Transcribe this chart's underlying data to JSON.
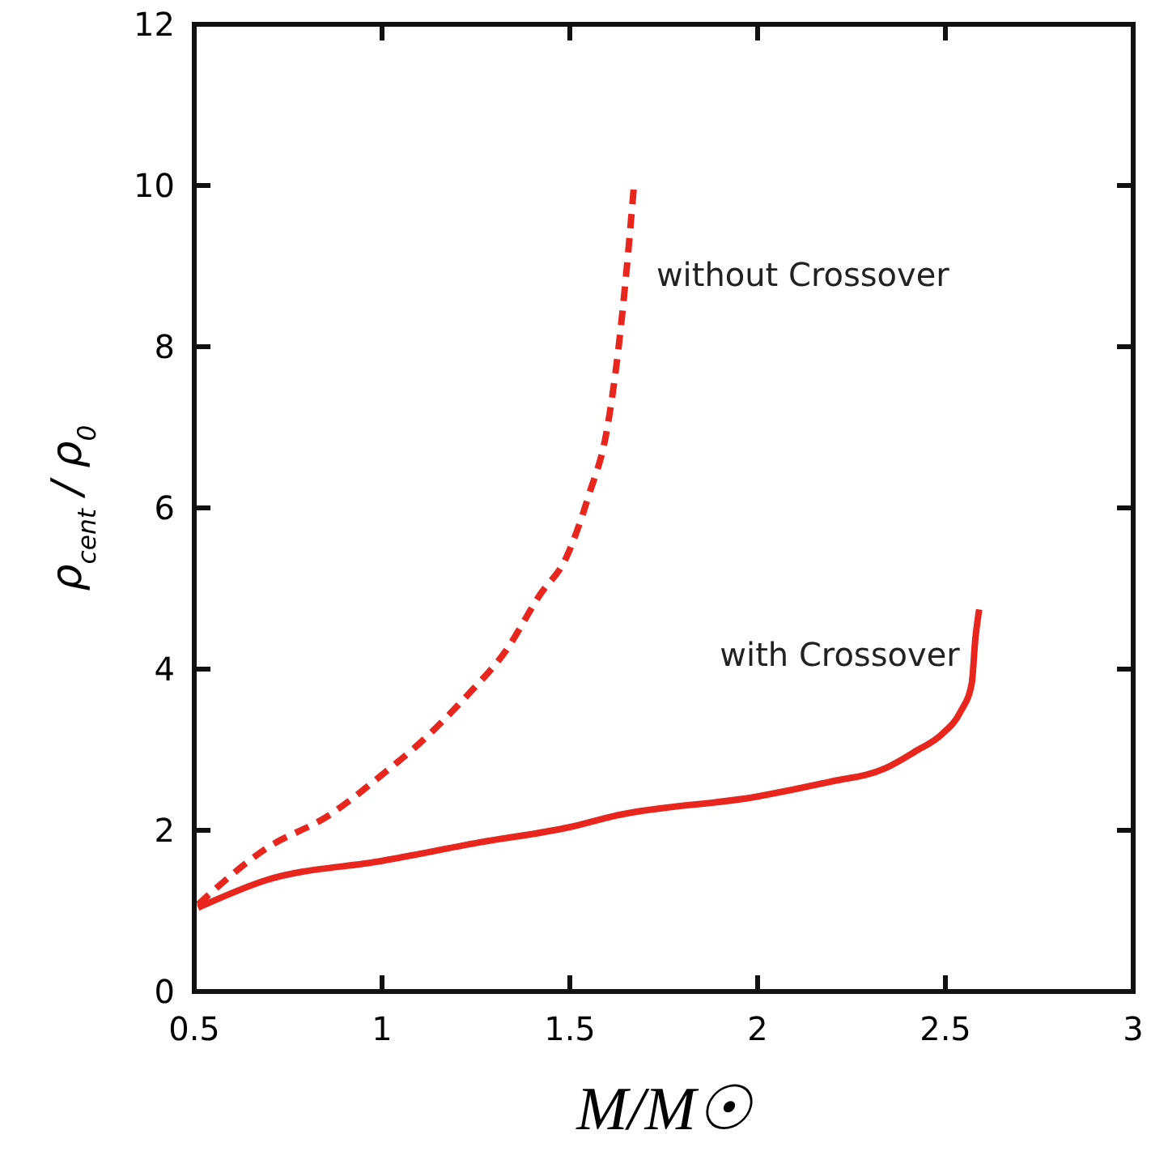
{
  "chart_data": {
    "type": "line",
    "xlabel": "M/M☉",
    "ylabel": "ρ$_{cent}$ / ρ$_{0}$",
    "xlim": [
      0.5,
      3
    ],
    "xticks": [
      0.5,
      1,
      1.5,
      2,
      2.5,
      3
    ],
    "ylim": [
      0,
      12
    ],
    "yticks": [
      0,
      2,
      4,
      6,
      8,
      10,
      12
    ],
    "grid": false,
    "marker": "none",
    "series": [
      {
        "name": "without Crossover",
        "color": "#e8261e",
        "line_style": "dashed",
        "x": [
          0.51,
          0.69,
          0.86,
          1.0,
          1.1,
          1.23,
          1.33,
          1.42,
          1.49,
          1.55,
          1.6,
          1.63,
          1.65,
          1.67
        ],
        "values": [
          1.08,
          1.77,
          2.19,
          2.69,
          3.08,
          3.69,
          4.23,
          4.92,
          5.38,
          6.15,
          7.0,
          8.0,
          8.9,
          9.96
        ]
      },
      {
        "name": "with Crossover",
        "color": "#e8261e",
        "line_style": "solid",
        "x": [
          0.51,
          0.69,
          1.0,
          1.26,
          1.5,
          1.62,
          2.0,
          2.19,
          2.34,
          2.42,
          2.49,
          2.54,
          2.57,
          2.58,
          2.59
        ],
        "values": [
          1.04,
          1.38,
          1.62,
          1.85,
          2.04,
          2.18,
          2.42,
          2.6,
          2.77,
          2.98,
          3.19,
          3.47,
          3.82,
          4.39,
          4.74
        ]
      }
    ]
  }
}
